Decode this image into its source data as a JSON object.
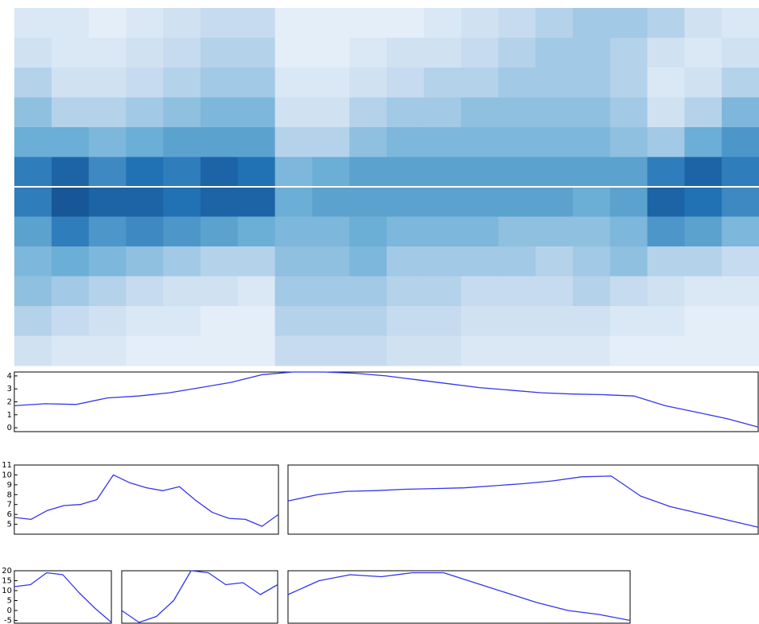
{
  "chart_data": [
    {
      "type": "heatmap",
      "colormap": [
        "#f7fbff",
        "#c6dbef",
        "#6baed6",
        "#2171b5",
        "#08306b"
      ],
      "values": [
        [
          0.15,
          0.15,
          0.1,
          0.15,
          0.2,
          0.25,
          0.25,
          0.1,
          0.1,
          0.1,
          0.1,
          0.15,
          0.2,
          0.25,
          0.3,
          0.35,
          0.35,
          0.3,
          0.2,
          0.15
        ],
        [
          0.2,
          0.15,
          0.15,
          0.2,
          0.25,
          0.3,
          0.3,
          0.1,
          0.1,
          0.15,
          0.2,
          0.2,
          0.25,
          0.3,
          0.35,
          0.35,
          0.3,
          0.2,
          0.15,
          0.2
        ],
        [
          0.3,
          0.2,
          0.2,
          0.25,
          0.3,
          0.35,
          0.35,
          0.15,
          0.15,
          0.2,
          0.25,
          0.3,
          0.3,
          0.35,
          0.35,
          0.35,
          0.3,
          0.15,
          0.2,
          0.3
        ],
        [
          0.4,
          0.3,
          0.3,
          0.35,
          0.4,
          0.45,
          0.45,
          0.2,
          0.2,
          0.3,
          0.35,
          0.35,
          0.4,
          0.4,
          0.4,
          0.4,
          0.35,
          0.2,
          0.3,
          0.45
        ],
        [
          0.5,
          0.5,
          0.45,
          0.5,
          0.55,
          0.55,
          0.55,
          0.3,
          0.3,
          0.4,
          0.45,
          0.45,
          0.45,
          0.45,
          0.45,
          0.45,
          0.4,
          0.35,
          0.5,
          0.6
        ],
        [
          0.7,
          0.8,
          0.65,
          0.75,
          0.7,
          0.8,
          0.75,
          0.45,
          0.5,
          0.55,
          0.55,
          0.55,
          0.55,
          0.55,
          0.55,
          0.55,
          0.55,
          0.7,
          0.8,
          0.7
        ],
        [
          0.7,
          0.85,
          0.8,
          0.8,
          0.75,
          0.8,
          0.8,
          0.5,
          0.55,
          0.55,
          0.55,
          0.55,
          0.55,
          0.55,
          0.55,
          0.5,
          0.55,
          0.8,
          0.75,
          0.65
        ],
        [
          0.55,
          0.7,
          0.6,
          0.65,
          0.6,
          0.55,
          0.5,
          0.45,
          0.45,
          0.5,
          0.45,
          0.45,
          0.45,
          0.4,
          0.4,
          0.4,
          0.45,
          0.6,
          0.55,
          0.45
        ],
        [
          0.45,
          0.5,
          0.45,
          0.4,
          0.35,
          0.3,
          0.3,
          0.4,
          0.4,
          0.45,
          0.35,
          0.35,
          0.35,
          0.35,
          0.3,
          0.35,
          0.4,
          0.3,
          0.3,
          0.25
        ],
        [
          0.4,
          0.35,
          0.3,
          0.25,
          0.2,
          0.2,
          0.15,
          0.35,
          0.35,
          0.35,
          0.3,
          0.3,
          0.25,
          0.25,
          0.25,
          0.3,
          0.25,
          0.2,
          0.15,
          0.15
        ],
        [
          0.3,
          0.25,
          0.2,
          0.15,
          0.15,
          0.1,
          0.1,
          0.3,
          0.3,
          0.3,
          0.25,
          0.25,
          0.2,
          0.2,
          0.2,
          0.2,
          0.15,
          0.15,
          0.1,
          0.1
        ],
        [
          0.2,
          0.15,
          0.15,
          0.1,
          0.1,
          0.1,
          0.1,
          0.25,
          0.25,
          0.25,
          0.2,
          0.2,
          0.15,
          0.15,
          0.15,
          0.15,
          0.1,
          0.1,
          0.1,
          0.1
        ]
      ]
    },
    {
      "type": "line",
      "color": "#3333ee",
      "ylim": [
        -0.3,
        4.3
      ],
      "yticks": [
        0,
        1,
        2,
        3,
        4
      ],
      "values": [
        1.7,
        1.85,
        1.8,
        2.3,
        2.45,
        2.7,
        3.1,
        3.5,
        4.1,
        4.3,
        4.3,
        4.2,
        4.0,
        3.7,
        3.4,
        3.1,
        2.9,
        2.7,
        2.6,
        2.55,
        2.45,
        1.7,
        1.2,
        0.7,
        0.05
      ]
    },
    {
      "type": "line",
      "color": "#3333ee",
      "ylim": [
        4,
        11
      ],
      "yticks": [
        5,
        6,
        7,
        8,
        9,
        10,
        11
      ],
      "values": [
        5.7,
        5.5,
        6.4,
        6.9,
        7.0,
        7.5,
        10.0,
        9.2,
        8.7,
        8.4,
        8.8,
        7.4,
        6.2,
        5.6,
        5.5,
        4.8,
        6.0
      ]
    },
    {
      "type": "line",
      "color": "#3333ee",
      "ylim": [
        0,
        1
      ],
      "values": [
        0.48,
        0.57,
        0.62,
        0.63,
        0.65,
        0.66,
        0.67,
        0.7,
        0.73,
        0.77,
        0.83,
        0.84,
        0.55,
        0.4,
        0.3,
        0.2,
        0.1
      ]
    },
    {
      "type": "line",
      "color": "#3333ee",
      "ylim": [
        -6.4,
        20
      ],
      "yticks": [
        -5,
        0,
        5,
        10,
        15,
        20
      ],
      "values": [
        12,
        13,
        19,
        18,
        9,
        1,
        -6
      ]
    },
    {
      "type": "line",
      "color": "#3333ee",
      "ylim": [
        -6.4,
        20
      ],
      "values": [
        0,
        -6,
        -3,
        5,
        20,
        19,
        13,
        14,
        8,
        13
      ]
    },
    {
      "type": "line",
      "color": "#3333ee",
      "ylim": [
        -6.4,
        20
      ],
      "values": [
        8,
        15,
        18,
        17,
        19,
        19,
        14,
        9,
        4,
        0,
        -2,
        -5
      ]
    }
  ]
}
